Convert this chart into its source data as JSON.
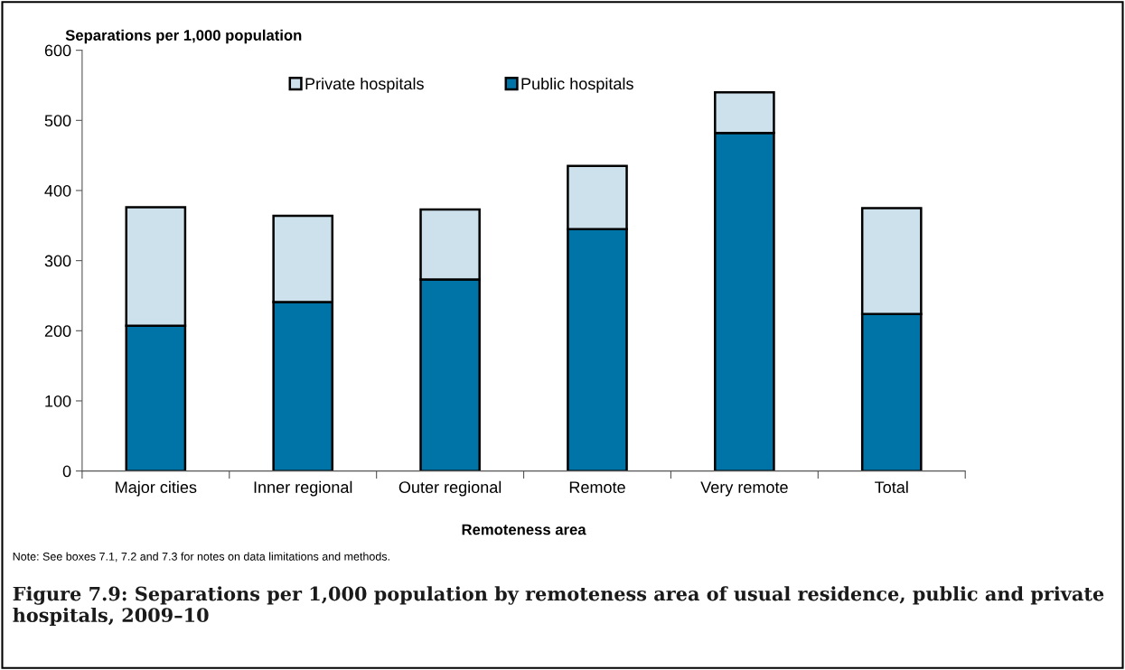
{
  "chart_data": {
    "type": "bar",
    "stacked": true,
    "title": "Figure 7.9: Separations per 1,000 population by remoteness area of usual residence, public and private hospitals, 2009–10",
    "ylabel": "Separations per 1,000 population",
    "xlabel": "Remoteness area",
    "categories": [
      "Major cities",
      "Inner regional",
      "Outer regional",
      "Remote",
      "Very remote",
      "Total"
    ],
    "series": [
      {
        "name": "Public hospitals",
        "color": "#0074a6",
        "values": [
          207,
          241,
          273,
          345,
          482,
          224
        ]
      },
      {
        "name": "Private hospitals",
        "color": "#cde1ec",
        "values": [
          169,
          123,
          100,
          90,
          58,
          151
        ]
      }
    ],
    "ylim": [
      0,
      600
    ],
    "yticks": [
      0,
      100,
      200,
      300,
      400,
      500,
      600
    ],
    "grid": false,
    "legend": "top",
    "annotations": [
      "Note: See boxes 7.1, 7.2 and 7.3 for notes on data limitations and methods."
    ]
  }
}
